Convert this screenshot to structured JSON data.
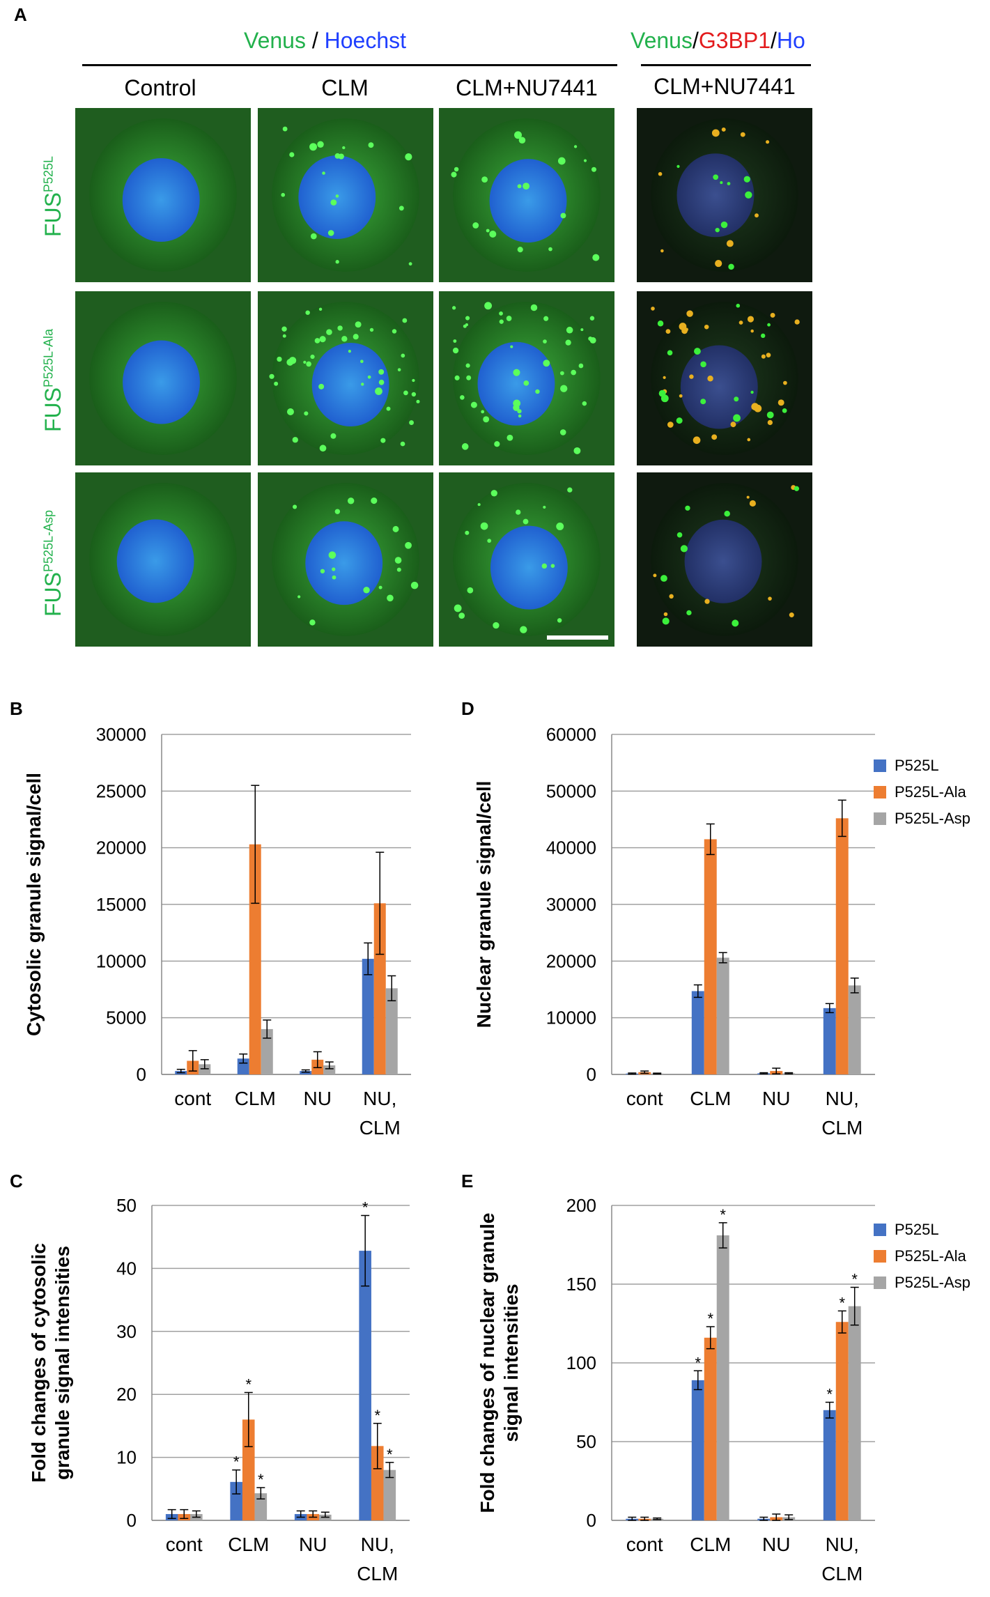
{
  "panel_a": {
    "letter": "A",
    "header_left": {
      "venus": "Venus",
      "sep": " / ",
      "hoechst": "Hoechst"
    },
    "header_right": {
      "venus": "Venus",
      "sep1": "/",
      "g3bp1": "G3BP1",
      "sep2": "/",
      "ho": "Ho"
    },
    "columns": [
      "Control",
      "CLM",
      "CLM+NU7441",
      "CLM+NU7441"
    ],
    "rows": [
      {
        "base": "FUS",
        "sup": "P525L"
      },
      {
        "base": "FUS",
        "sup": "P525L-Ala"
      },
      {
        "base": "FUS",
        "sup": "P525L-Asp"
      }
    ],
    "colors": {
      "venus": "#22b14c",
      "hoechst": "#1f3fff",
      "g3bp1": "#e31a1c"
    }
  },
  "series_names": [
    "P525L",
    "P525L-Ala",
    "P525L-Asp"
  ],
  "series_colors": [
    "#4472c4",
    "#ed7d31",
    "#a5a5a5"
  ],
  "chart_data": [
    {
      "id": "B",
      "letter": "B",
      "type": "bar",
      "ylabel": "Cytosolic granule signal/cell",
      "categories": [
        [
          "cont"
        ],
        [
          "CLM"
        ],
        [
          "NU"
        ],
        [
          "NU,",
          "CLM"
        ]
      ],
      "ylim": [
        0,
        30000
      ],
      "yticks": [
        0,
        5000,
        10000,
        15000,
        20000,
        25000,
        30000
      ],
      "series": [
        {
          "name": "P525L",
          "values": [
            300,
            1400,
            300,
            10200
          ],
          "errors": [
            150,
            400,
            100,
            1400
          ],
          "stars": [
            false,
            false,
            false,
            false
          ]
        },
        {
          "name": "P525L-Ala",
          "values": [
            1200,
            20300,
            1300,
            15100
          ],
          "errors": [
            900,
            5200,
            700,
            4500
          ],
          "stars": [
            false,
            false,
            false,
            false
          ]
        },
        {
          "name": "P525L-Asp",
          "values": [
            900,
            4000,
            800,
            7600
          ],
          "errors": [
            400,
            800,
            300,
            1100
          ],
          "stars": [
            false,
            false,
            false,
            false
          ]
        }
      ],
      "legend": false
    },
    {
      "id": "D",
      "letter": "D",
      "type": "bar",
      "ylabel": "Nuclear granule signal/cell",
      "categories": [
        [
          "cont"
        ],
        [
          "CLM"
        ],
        [
          "NU"
        ],
        [
          "NU,",
          "CLM"
        ]
      ],
      "ylim": [
        0,
        60000
      ],
      "yticks": [
        0,
        10000,
        20000,
        30000,
        40000,
        50000,
        60000
      ],
      "series": [
        {
          "name": "P525L",
          "values": [
            150,
            14700,
            200,
            11700
          ],
          "errors": [
            100,
            1100,
            100,
            800
          ],
          "stars": [
            false,
            false,
            false,
            false
          ]
        },
        {
          "name": "P525L-Ala",
          "values": [
            400,
            41500,
            600,
            45200
          ],
          "errors": [
            200,
            2700,
            500,
            3200
          ],
          "stars": [
            false,
            false,
            false,
            false
          ]
        },
        {
          "name": "P525L-Asp",
          "values": [
            150,
            20600,
            200,
            15700
          ],
          "errors": [
            80,
            900,
            100,
            1300
          ],
          "stars": [
            false,
            false,
            false,
            false
          ]
        }
      ],
      "legend": true
    },
    {
      "id": "C",
      "letter": "C",
      "type": "bar",
      "ylabel": "Fold changes of cytosolic granule signal intensities",
      "ylabel_lines": [
        "Fold changes of cytosolic",
        "granule signal intensities"
      ],
      "categories": [
        [
          "cont"
        ],
        [
          "CLM"
        ],
        [
          "NU"
        ],
        [
          "NU,",
          "CLM"
        ]
      ],
      "ylim": [
        0,
        50
      ],
      "yticks": [
        0,
        10,
        20,
        30,
        40,
        50
      ],
      "series": [
        {
          "name": "P525L",
          "values": [
            1,
            6.1,
            1,
            42.8
          ],
          "errors": [
            0.7,
            1.9,
            0.5,
            5.6
          ],
          "stars": [
            false,
            true,
            false,
            true
          ]
        },
        {
          "name": "P525L-Ala",
          "values": [
            1,
            16,
            1,
            11.8
          ],
          "errors": [
            0.7,
            4.3,
            0.5,
            3.6
          ],
          "stars": [
            false,
            true,
            false,
            true
          ]
        },
        {
          "name": "P525L-Asp",
          "values": [
            1,
            4.3,
            0.9,
            8
          ],
          "errors": [
            0.5,
            0.9,
            0.4,
            1.2
          ],
          "stars": [
            false,
            true,
            false,
            true
          ]
        }
      ],
      "legend": false
    },
    {
      "id": "E",
      "letter": "E",
      "type": "bar",
      "ylabel": "Fold changes of nuclear granule signal intensities",
      "ylabel_lines": [
        "Fold changes of nuclear granule",
        "signal intensities"
      ],
      "categories": [
        [
          "cont"
        ],
        [
          "CLM"
        ],
        [
          "NU"
        ],
        [
          "NU,",
          "CLM"
        ]
      ],
      "ylim": [
        0,
        200
      ],
      "yticks": [
        0,
        50,
        100,
        150,
        200
      ],
      "series": [
        {
          "name": "P525L",
          "values": [
            1,
            89,
            1,
            70
          ],
          "errors": [
            1,
            6,
            1,
            5
          ],
          "stars": [
            false,
            true,
            false,
            true
          ]
        },
        {
          "name": "P525L-Ala",
          "values": [
            1,
            116,
            2,
            126
          ],
          "errors": [
            1,
            7,
            2,
            7
          ],
          "stars": [
            false,
            true,
            false,
            true
          ]
        },
        {
          "name": "P525L-Asp",
          "values": [
            1,
            181,
            2,
            136
          ],
          "errors": [
            0.5,
            8,
            1.5,
            12
          ],
          "stars": [
            false,
            true,
            false,
            true
          ]
        }
      ],
      "legend": true
    }
  ]
}
